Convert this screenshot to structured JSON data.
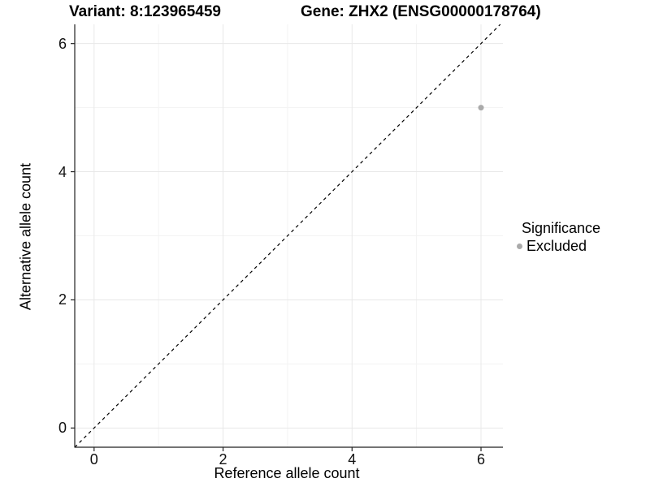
{
  "chart_data": {
    "type": "scatter",
    "titles": {
      "left": "Variant: 8:123965459",
      "right": "Gene: ZHX2 (ENSG00000178764)"
    },
    "xlabel": "Reference allele count",
    "ylabel": "Alternative allele count",
    "xlim": [
      -0.3,
      6.34
    ],
    "ylim": [
      -0.3,
      6.3
    ],
    "x_ticks": [
      0,
      2,
      4,
      6
    ],
    "y_ticks": [
      0,
      2,
      4,
      6
    ],
    "x_minor_gridlines": [
      1,
      3,
      5
    ],
    "y_minor_gridlines": [
      1,
      3,
      5
    ],
    "grid": true,
    "series": [
      {
        "name": "Excluded",
        "color": "#aaaaaa",
        "points": [
          {
            "x": 6,
            "y": 5
          }
        ]
      }
    ],
    "identity_line": {
      "style": "dashed",
      "color": "#000000",
      "from": -0.3,
      "to": 6.3
    },
    "legend": {
      "title": "Significance",
      "position": "right",
      "entries": [
        {
          "label": "Excluded",
          "color": "#aaaaaa"
        }
      ]
    },
    "colors": {
      "grid_major": "#e8e8e8",
      "grid_minor": "#f3f3f3",
      "axis": "#222222",
      "text": "#000000"
    }
  }
}
